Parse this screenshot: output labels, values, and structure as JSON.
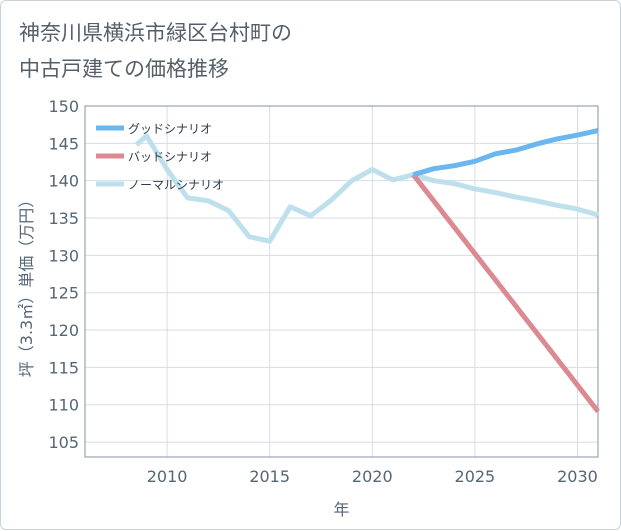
{
  "title_lines": [
    "神奈川県横浜市緑区台村町の",
    "中古戸建ての価格推移"
  ],
  "chart_data": {
    "type": "line",
    "title": "神奈川県横浜市緑区台村町の中古戸建ての価格推移",
    "xlabel": "年",
    "ylabel": "坪（3.3㎡）単価（万円）",
    "xlim": [
      2006,
      2031
    ],
    "ylim": [
      103,
      150
    ],
    "xticks": [
      2010,
      2015,
      2020,
      2025,
      2030
    ],
    "yticks": [
      105,
      110,
      115,
      120,
      125,
      130,
      135,
      140,
      145,
      150
    ],
    "grid": true,
    "legend_position": "top-left",
    "series": [
      {
        "name": "グッドシナリオ",
        "color": "#6ab6ee",
        "x": [
          2022,
          2023,
          2024,
          2025,
          2026,
          2027,
          2028,
          2029,
          2030,
          2031
        ],
        "y": [
          140.8,
          141.6,
          142.0,
          142.6,
          143.6,
          144.1,
          144.9,
          145.6,
          146.1,
          146.7
        ]
      },
      {
        "name": "バッドシナリオ",
        "color": "#dc8a92",
        "x": [
          2022,
          2031
        ],
        "y": [
          140.8,
          109.1
        ]
      },
      {
        "name": "ノーマルシナリオ",
        "color": "#bde0ec",
        "x": [
          2008.5,
          2009,
          2010,
          2011,
          2012,
          2013,
          2014,
          2015,
          2016,
          2017,
          2018,
          2019,
          2020,
          2021,
          2022,
          2023,
          2024,
          2025,
          2026,
          2027,
          2028,
          2029,
          2030,
          2031
        ],
        "y": [
          144.8,
          146.0,
          141.5,
          137.7,
          137.3,
          136.0,
          132.5,
          131.9,
          136.5,
          135.3,
          137.4,
          140.0,
          141.5,
          140.1,
          140.8,
          140.0,
          139.6,
          138.9,
          138.4,
          137.8,
          137.3,
          136.7,
          136.2,
          135.4
        ]
      }
    ]
  }
}
